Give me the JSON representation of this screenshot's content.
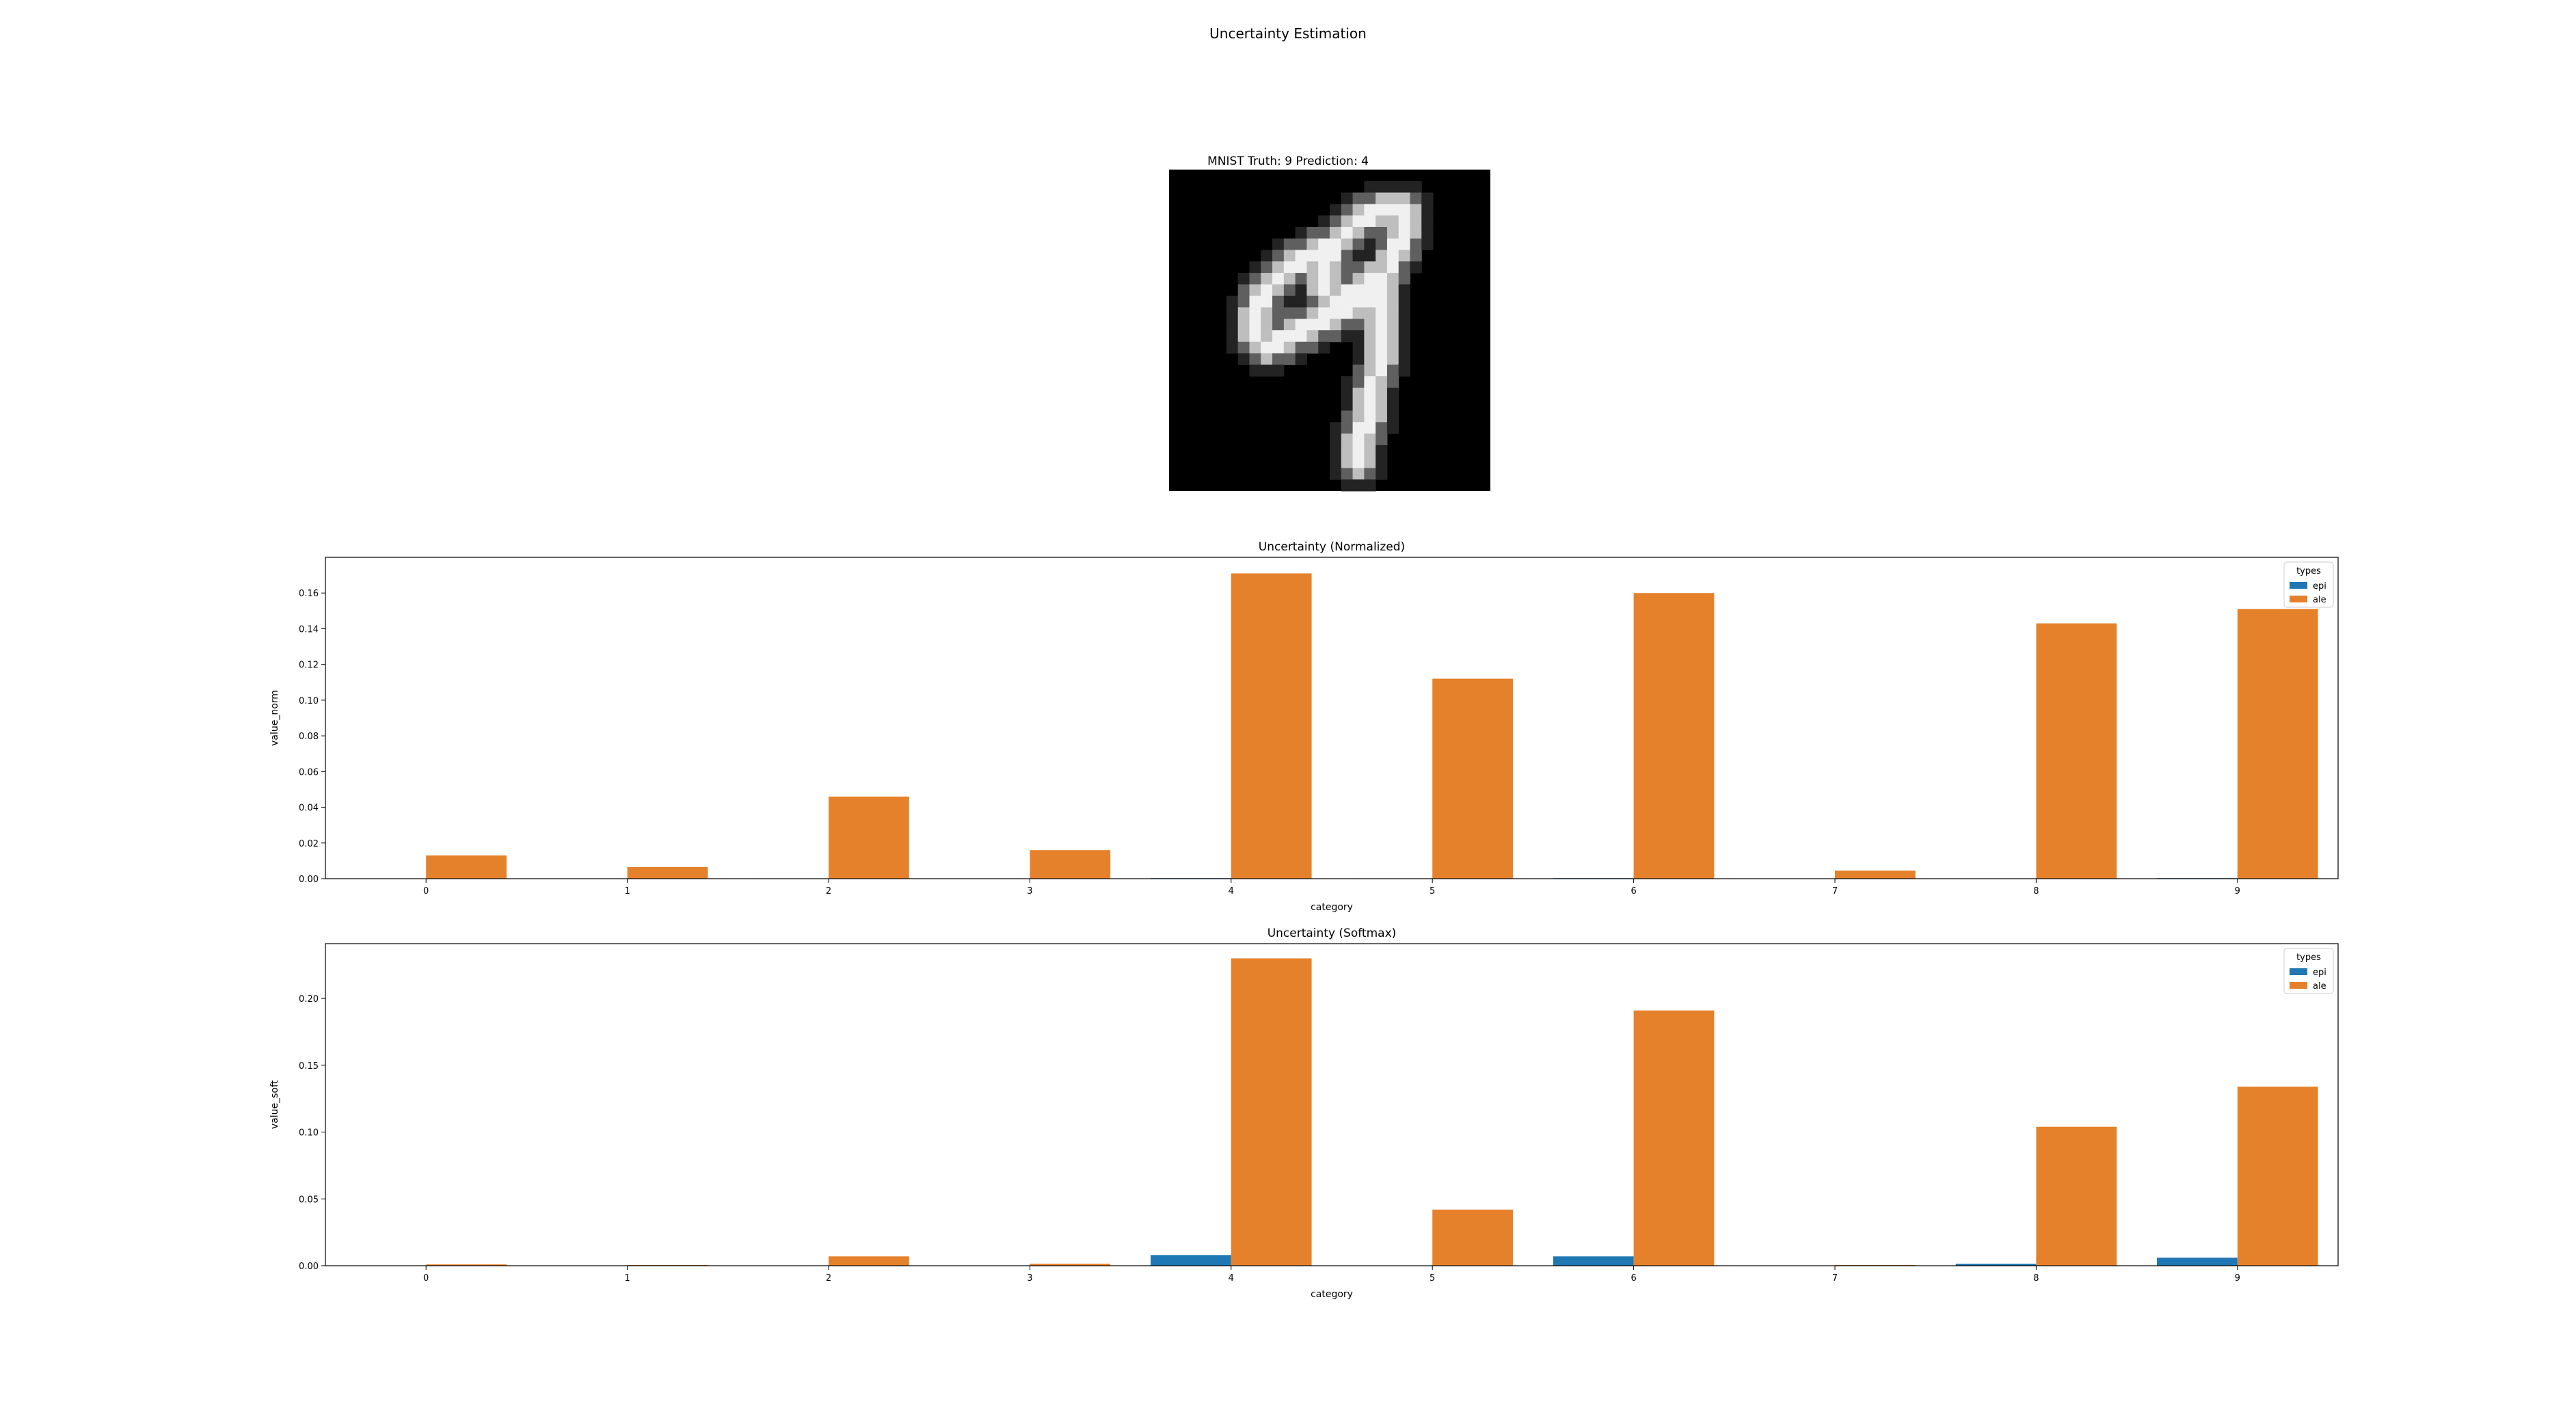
{
  "suptitle": "Uncertainty Estimation",
  "image_panel": {
    "title": "MNIST Truth: 9 Prediction: 4",
    "digit_icon": "handwritten-digit-nine"
  },
  "colors": {
    "epi": "#1f77b4",
    "ale": "#e6812b",
    "image_bg": "#000000"
  },
  "chart_data": [
    {
      "type": "bar",
      "title": "Uncertainty (Normalized)",
      "xlabel": "category",
      "ylabel": "value_norm",
      "categories": [
        "0",
        "1",
        "2",
        "3",
        "4",
        "5",
        "6",
        "7",
        "8",
        "9"
      ],
      "series": [
        {
          "name": "epi",
          "values": [
            0.0,
            0.0,
            0.0002,
            0.0,
            0.0003,
            0.0002,
            0.0003,
            0.0,
            0.0002,
            0.0003
          ]
        },
        {
          "name": "ale",
          "values": [
            0.013,
            0.0065,
            0.046,
            0.016,
            0.171,
            0.112,
            0.16,
            0.0045,
            0.143,
            0.151
          ]
        }
      ],
      "ylim": [
        0,
        0.18
      ],
      "yticks": [
        "0.00",
        "0.02",
        "0.04",
        "0.06",
        "0.08",
        "0.10",
        "0.12",
        "0.14",
        "0.16"
      ],
      "legend": {
        "title": "types",
        "placement": "top-right"
      },
      "grid": false
    },
    {
      "type": "bar",
      "title": "Uncertainty (Softmax)",
      "xlabel": "category",
      "ylabel": "value_soft",
      "categories": [
        "0",
        "1",
        "2",
        "3",
        "4",
        "5",
        "6",
        "7",
        "8",
        "9"
      ],
      "series": [
        {
          "name": "epi",
          "values": [
            0.0,
            0.0,
            0.0,
            0.0,
            0.008,
            0.0,
            0.007,
            0.0,
            0.0015,
            0.006
          ]
        },
        {
          "name": "ale",
          "values": [
            0.001,
            0.0005,
            0.007,
            0.0015,
            0.23,
            0.042,
            0.191,
            0.0005,
            0.104,
            0.134
          ]
        }
      ],
      "ylim": [
        0,
        0.241
      ],
      "yticks": [
        "0.00",
        "0.05",
        "0.10",
        "0.15",
        "0.20"
      ],
      "legend": {
        "title": "types",
        "placement": "top-right"
      },
      "grid": false
    }
  ]
}
